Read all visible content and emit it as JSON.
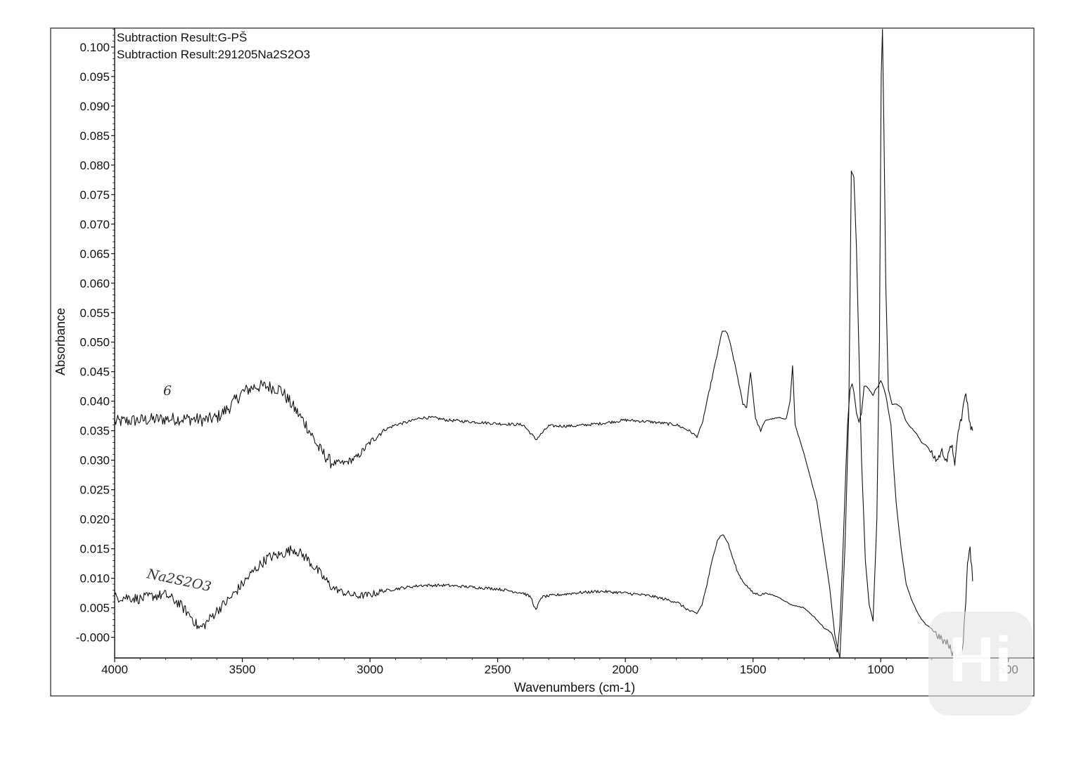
{
  "chart_data": {
    "type": "line",
    "title_lines": [
      "Subtraction Result:G-PŠ",
      "Subtraction Result:291205Na2S2O3"
    ],
    "xlabel": "Wavenumbers (cm-1)",
    "ylabel": "Absorbance",
    "xlim": [
      4000,
      400
    ],
    "ylim": [
      -0.0035,
      0.1032
    ],
    "x_reversed": true,
    "grid": false,
    "x_ticks": [
      "4000",
      "3500",
      "3000",
      "2500",
      "2000",
      "1500",
      "1000",
      "500"
    ],
    "y_ticks": [
      "-0.000",
      "0.005",
      "0.010",
      "0.015",
      "0.020",
      "0.025",
      "0.030",
      "0.035",
      "0.040",
      "0.045",
      "0.050",
      "0.055",
      "0.060",
      "0.065",
      "0.070",
      "0.075",
      "0.080",
      "0.085",
      "0.090",
      "0.095",
      "0.100"
    ],
    "series": [
      {
        "name": "6",
        "x": [
          4000,
          3900,
          3800,
          3700,
          3650,
          3600,
          3550,
          3500,
          3450,
          3400,
          3350,
          3300,
          3250,
          3200,
          3150,
          3100,
          3050,
          3000,
          2950,
          2900,
          2850,
          2800,
          2750,
          2700,
          2600,
          2500,
          2400,
          2350,
          2300,
          2200,
          2100,
          2000,
          1900,
          1800,
          1750,
          1720,
          1700,
          1680,
          1650,
          1620,
          1600,
          1580,
          1560,
          1540,
          1525,
          1510,
          1490,
          1470,
          1450,
          1400,
          1370,
          1355,
          1345,
          1335,
          1300,
          1250,
          1200,
          1180,
          1160,
          1140,
          1125,
          1115,
          1105,
          1095,
          1085,
          1075,
          1060,
          1045,
          1030,
          1015,
          1005,
          998,
          993,
          988,
          980,
          970,
          955,
          940,
          920,
          900,
          880,
          860,
          840,
          820,
          800,
          780,
          760,
          740,
          720,
          710,
          700,
          690,
          680,
          670,
          660,
          650,
          640
        ],
        "y": [
          0.0365,
          0.0368,
          0.037,
          0.037,
          0.0368,
          0.0372,
          0.039,
          0.0415,
          0.0425,
          0.0425,
          0.042,
          0.039,
          0.036,
          0.032,
          0.0295,
          0.0295,
          0.0305,
          0.033,
          0.035,
          0.036,
          0.0365,
          0.0372,
          0.0372,
          0.0368,
          0.0365,
          0.0362,
          0.036,
          0.0335,
          0.0358,
          0.0358,
          0.0362,
          0.0368,
          0.0365,
          0.036,
          0.035,
          0.034,
          0.036,
          0.04,
          0.046,
          0.052,
          0.0515,
          0.048,
          0.044,
          0.0395,
          0.039,
          0.045,
          0.037,
          0.035,
          0.0368,
          0.0372,
          0.037,
          0.04,
          0.046,
          0.036,
          0.031,
          0.023,
          0.0085,
          0.0005,
          -0.0035,
          0.015,
          0.038,
          0.079,
          0.078,
          0.066,
          0.048,
          0.03,
          0.013,
          0.0055,
          0.0028,
          0.02,
          0.05,
          0.095,
          0.103,
          0.088,
          0.06,
          0.042,
          0.0395,
          0.0395,
          0.039,
          0.0365,
          0.0355,
          0.0345,
          0.033,
          0.0325,
          0.031,
          0.03,
          0.0315,
          0.03,
          0.033,
          0.0285,
          0.034,
          0.036,
          0.038,
          0.041,
          0.04,
          0.036,
          0.035
        ]
      },
      {
        "name": "Na2S2O3",
        "x": [
          4000,
          3950,
          3900,
          3850,
          3800,
          3750,
          3700,
          3670,
          3650,
          3600,
          3550,
          3500,
          3450,
          3400,
          3350,
          3300,
          3250,
          3200,
          3150,
          3100,
          3050,
          3000,
          2950,
          2900,
          2850,
          2800,
          2700,
          2600,
          2500,
          2400,
          2370,
          2350,
          2330,
          2300,
          2200,
          2100,
          2000,
          1900,
          1800,
          1750,
          1720,
          1700,
          1680,
          1660,
          1640,
          1620,
          1600,
          1580,
          1560,
          1540,
          1520,
          1500,
          1470,
          1450,
          1400,
          1350,
          1300,
          1250,
          1220,
          1200,
          1190,
          1180,
          1170,
          1160,
          1150,
          1140,
          1130,
          1120,
          1112,
          1105,
          1095,
          1085,
          1075,
          1065,
          1055,
          1045,
          1030,
          1020,
          1010,
          1000,
          990,
          980,
          960,
          940,
          920,
          900,
          880,
          860,
          840,
          820,
          800,
          780,
          760,
          740,
          720,
          700,
          680,
          670,
          660,
          650,
          640
        ],
        "y": [
          0.0068,
          0.0068,
          0.0065,
          0.007,
          0.0072,
          0.0058,
          0.0035,
          0.0015,
          0.002,
          0.0045,
          0.0065,
          0.009,
          0.0115,
          0.0135,
          0.014,
          0.015,
          0.0135,
          0.011,
          0.0085,
          0.0075,
          0.007,
          0.0072,
          0.0078,
          0.0082,
          0.0085,
          0.0088,
          0.0088,
          0.0085,
          0.0082,
          0.0075,
          0.0068,
          0.0045,
          0.0068,
          0.007,
          0.0075,
          0.0078,
          0.0075,
          0.007,
          0.006,
          0.0045,
          0.004,
          0.0055,
          0.009,
          0.013,
          0.0165,
          0.0175,
          0.0162,
          0.0135,
          0.011,
          0.0095,
          0.0085,
          0.0075,
          0.0072,
          0.0075,
          0.0068,
          0.0055,
          0.005,
          0.003,
          0.0015,
          0.001,
          0.0005,
          -0.001,
          -0.0025,
          0.002,
          0.012,
          0.024,
          0.036,
          0.042,
          0.043,
          0.0415,
          0.038,
          0.0365,
          0.038,
          0.0425,
          0.0425,
          0.042,
          0.041,
          0.042,
          0.0425,
          0.0435,
          0.0425,
          0.041,
          0.036,
          0.023,
          0.015,
          0.009,
          0.0065,
          0.0045,
          0.003,
          0.002,
          0.0015,
          0.0005,
          -0.0005,
          -0.001,
          -0.0025,
          -0.003,
          -0.0025,
          0.004,
          0.012,
          0.0155,
          0.0095
        ]
      }
    ]
  }
}
